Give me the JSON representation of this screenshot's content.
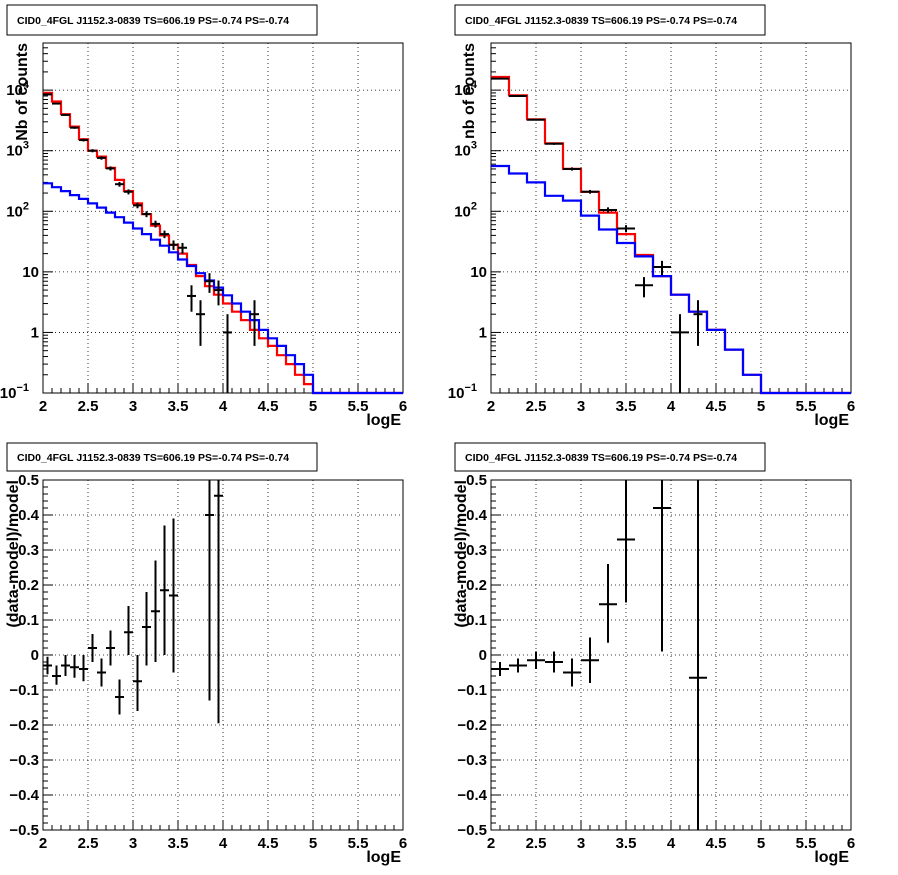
{
  "chart_data": [
    {
      "type": "line",
      "title": "CID0_4FGL J1152.3-0839 TS=606.19 PS=-0.74 PS=-0.74",
      "xlabel": "logE",
      "ylabel": "Nb of counts",
      "xlim": [
        2,
        6
      ],
      "ylim": [
        0.1,
        60000
      ],
      "ylog": true,
      "grid": true,
      "x_ticks": [
        "2",
        "2.5",
        "3",
        "3.5",
        "4",
        "4.5",
        "5",
        "5.5",
        "6"
      ],
      "y_ticks": [
        {
          "v": 0.1,
          "label": "10",
          "exp": "−1"
        },
        {
          "v": 1,
          "label": "1",
          "exp": ""
        },
        {
          "v": 10,
          "label": "10",
          "exp": ""
        },
        {
          "v": 100,
          "label": "10",
          "exp": "2"
        },
        {
          "v": 1000,
          "label": "10",
          "exp": "3"
        },
        {
          "v": 10000,
          "label": "10",
          "exp": "4"
        }
      ],
      "bin_edges": [
        2.0,
        2.1,
        2.2,
        2.3,
        2.4,
        2.5,
        2.6,
        2.7,
        2.8,
        2.9,
        3.0,
        3.1,
        3.2,
        3.3,
        3.4,
        3.5,
        3.6,
        3.7,
        3.8,
        3.9,
        4.0,
        4.1,
        4.2,
        4.3,
        4.4,
        4.5,
        4.6,
        4.7,
        4.8,
        4.9,
        5.0,
        5.1,
        5.2,
        5.3,
        5.4,
        5.5,
        5.6,
        5.7,
        5.8,
        5.9,
        6.0
      ],
      "series": [
        {
          "color": "#ff0000",
          "values": [
            9000,
            6500,
            4000,
            2500,
            1550,
            1000,
            800,
            520,
            330,
            215,
            135,
            90,
            58,
            40,
            28,
            20,
            13,
            8.5,
            5.8,
            4.2,
            3.0,
            2.2,
            1.6,
            1.1,
            0.8,
            0.6,
            0.42,
            0.3,
            0.2,
            0.14,
            0.1,
            0.1,
            0.1,
            0.1,
            0.1,
            0.1,
            0.1,
            0.1,
            0.1,
            0.1
          ]
        },
        {
          "color": "#0000ff",
          "values": [
            290,
            250,
            215,
            185,
            160,
            135,
            115,
            95,
            80,
            65,
            52,
            42,
            34,
            27,
            21,
            16,
            12.5,
            9.5,
            7.2,
            5.5,
            4.1,
            3.0,
            2.2,
            1.6,
            1.1,
            0.8,
            0.6,
            0.42,
            0.3,
            0.2,
            0.1,
            0.1,
            0.1,
            0.1,
            0.1,
            0.1,
            0.1,
            0.1,
            0.1,
            0.1
          ]
        }
      ],
      "points": [
        {
          "x": 2.05,
          "y": 8500,
          "xerr": 0.05,
          "lo": 8300,
          "hi": 8700
        },
        {
          "x": 2.15,
          "y": 6000,
          "xerr": 0.05,
          "lo": 5850,
          "hi": 6150
        },
        {
          "x": 2.25,
          "y": 3900,
          "xerr": 0.05,
          "lo": 3780,
          "hi": 4020
        },
        {
          "x": 2.35,
          "y": 2400,
          "xerr": 0.05,
          "lo": 2300,
          "hi": 2500
        },
        {
          "x": 2.45,
          "y": 1500,
          "xerr": 0.05,
          "lo": 1420,
          "hi": 1580
        },
        {
          "x": 2.55,
          "y": 1000,
          "xerr": 0.05,
          "lo": 940,
          "hi": 1060
        },
        {
          "x": 2.65,
          "y": 760,
          "xerr": 0.05,
          "lo": 710,
          "hi": 810
        },
        {
          "x": 2.75,
          "y": 510,
          "xerr": 0.05,
          "lo": 470,
          "hi": 550
        },
        {
          "x": 2.85,
          "y": 280,
          "xerr": 0.05,
          "lo": 255,
          "hi": 305
        },
        {
          "x": 2.95,
          "y": 210,
          "xerr": 0.05,
          "lo": 190,
          "hi": 230
        },
        {
          "x": 3.05,
          "y": 125,
          "xerr": 0.05,
          "lo": 112,
          "hi": 138
        },
        {
          "x": 3.15,
          "y": 90,
          "xerr": 0.05,
          "lo": 80,
          "hi": 100
        },
        {
          "x": 3.25,
          "y": 62,
          "xerr": 0.05,
          "lo": 54,
          "hi": 70
        },
        {
          "x": 3.35,
          "y": 42,
          "xerr": 0.05,
          "lo": 36,
          "hi": 48
        },
        {
          "x": 3.45,
          "y": 28,
          "xerr": 0.05,
          "lo": 23,
          "hi": 33
        },
        {
          "x": 3.55,
          "y": 25,
          "xerr": 0.05,
          "lo": 20,
          "hi": 30
        },
        {
          "x": 3.65,
          "y": 4,
          "xerr": 0.05,
          "lo": 2.2,
          "hi": 6
        },
        {
          "x": 3.75,
          "y": 2,
          "xerr": 0.05,
          "lo": 0.6,
          "hi": 3.4
        },
        {
          "x": 3.85,
          "y": 7,
          "xerr": 0.05,
          "lo": 4.5,
          "hi": 9.5
        },
        {
          "x": 3.95,
          "y": 5,
          "xerr": 0.05,
          "lo": 2.8,
          "hi": 7.2
        },
        {
          "x": 4.05,
          "y": 1,
          "xerr": 0.05,
          "lo": 0.1,
          "hi": 2.0
        },
        {
          "x": 4.35,
          "y": 2,
          "xerr": 0.05,
          "lo": 0.6,
          "hi": 3.4
        }
      ]
    },
    {
      "type": "line",
      "title": "CID0_4FGL J1152.3-0839 TS=606.19 PS=-0.74 PS=-0.74",
      "xlabel": "logE",
      "ylabel": "nb of counts",
      "xlim": [
        2,
        6
      ],
      "ylim": [
        0.1,
        60000
      ],
      "ylog": true,
      "grid": true,
      "x_ticks": [
        "2",
        "2.5",
        "3",
        "3.5",
        "4",
        "4.5",
        "5",
        "5.5",
        "6"
      ],
      "y_ticks": [
        {
          "v": 0.1,
          "label": "10",
          "exp": "−1"
        },
        {
          "v": 1,
          "label": "1",
          "exp": ""
        },
        {
          "v": 10,
          "label": "10",
          "exp": ""
        },
        {
          "v": 100,
          "label": "10",
          "exp": "2"
        },
        {
          "v": 1000,
          "label": "10",
          "exp": "3"
        },
        {
          "v": 10000,
          "label": "10",
          "exp": "4"
        }
      ],
      "bin_edges": [
        2.0,
        2.2,
        2.4,
        2.6,
        2.8,
        3.0,
        3.2,
        3.4,
        3.6,
        3.8,
        4.0,
        4.2,
        4.4,
        4.6,
        4.8,
        5.0,
        5.2,
        5.4,
        5.6,
        5.8,
        6.0
      ],
      "series": [
        {
          "color": "#ff0000",
          "values": [
            16500,
            8200,
            3300,
            1320,
            500,
            210,
            95,
            42,
            19,
            8.5,
            4.2,
            2.2,
            1.1,
            0.52,
            0.2,
            0.1,
            0.1,
            0.1,
            0.1,
            0.1
          ]
        },
        {
          "color": "#0000ff",
          "values": [
            560,
            420,
            300,
            180,
            150,
            85,
            50,
            30,
            18,
            8.5,
            4.2,
            2.2,
            1.1,
            0.52,
            0.2,
            0.1,
            0.1,
            0.1,
            0.1,
            0.1
          ]
        }
      ],
      "points": [
        {
          "x": 2.1,
          "y": 15500,
          "xerr": 0.1,
          "lo": 15200,
          "hi": 15800
        },
        {
          "x": 2.3,
          "y": 8000,
          "xerr": 0.1,
          "lo": 7850,
          "hi": 8150
        },
        {
          "x": 2.5,
          "y": 3250,
          "xerr": 0.1,
          "lo": 3150,
          "hi": 3350
        },
        {
          "x": 2.7,
          "y": 1300,
          "xerr": 0.1,
          "lo": 1250,
          "hi": 1350
        },
        {
          "x": 2.9,
          "y": 500,
          "xerr": 0.1,
          "lo": 470,
          "hi": 530
        },
        {
          "x": 3.1,
          "y": 210,
          "xerr": 0.1,
          "lo": 195,
          "hi": 225
        },
        {
          "x": 3.3,
          "y": 105,
          "xerr": 0.1,
          "lo": 94,
          "hi": 116
        },
        {
          "x": 3.5,
          "y": 52,
          "xerr": 0.1,
          "lo": 45,
          "hi": 59
        },
        {
          "x": 3.7,
          "y": 6,
          "xerr": 0.1,
          "lo": 3.8,
          "hi": 8.2
        },
        {
          "x": 3.9,
          "y": 12,
          "xerr": 0.1,
          "lo": 8.8,
          "hi": 15.2
        },
        {
          "x": 4.1,
          "y": 1,
          "xerr": 0.1,
          "lo": 0.1,
          "hi": 2.0
        },
        {
          "x": 4.3,
          "y": 2,
          "xerr": 0.05,
          "lo": 0.6,
          "hi": 3.4
        }
      ]
    },
    {
      "type": "scatter",
      "title": "CID0_4FGL J1152.3-0839 TS=606.19 PS=-0.74 PS=-0.74",
      "xlabel": "logE",
      "ylabel": "(data-model)/model",
      "xlim": [
        2,
        6
      ],
      "ylim": [
        -0.5,
        0.5
      ],
      "ylog": false,
      "grid": true,
      "x_ticks": [
        "2",
        "2.5",
        "3",
        "3.5",
        "4",
        "4.5",
        "5",
        "5.5",
        "6"
      ],
      "y_ticks": [
        {
          "v": -0.5,
          "label": "−0.5"
        },
        {
          "v": -0.4,
          "label": "−0.4"
        },
        {
          "v": -0.3,
          "label": "−0.3"
        },
        {
          "v": -0.2,
          "label": "−0.2"
        },
        {
          "v": -0.1,
          "label": "−0.1"
        },
        {
          "v": 0,
          "label": "0"
        },
        {
          "v": 0.1,
          "label": "0.1"
        },
        {
          "v": 0.2,
          "label": "0.2"
        },
        {
          "v": 0.3,
          "label": "0.3"
        },
        {
          "v": 0.4,
          "label": "0.4"
        },
        {
          "v": 0.5,
          "label": "0.5"
        }
      ],
      "points": [
        {
          "x": 2.05,
          "y": -0.03,
          "xerr": 0.05,
          "lo": -0.055,
          "hi": -0.005
        },
        {
          "x": 2.15,
          "y": -0.06,
          "xerr": 0.05,
          "lo": -0.085,
          "hi": -0.03
        },
        {
          "x": 2.25,
          "y": -0.03,
          "xerr": 0.05,
          "lo": -0.06,
          "hi": 0.0
        },
        {
          "x": 2.35,
          "y": -0.035,
          "xerr": 0.05,
          "lo": -0.065,
          "hi": 0.0
        },
        {
          "x": 2.45,
          "y": -0.04,
          "xerr": 0.05,
          "lo": -0.075,
          "hi": 0.0
        },
        {
          "x": 2.55,
          "y": 0.02,
          "xerr": 0.05,
          "lo": -0.02,
          "hi": 0.06
        },
        {
          "x": 2.65,
          "y": -0.05,
          "xerr": 0.05,
          "lo": -0.09,
          "hi": -0.01
        },
        {
          "x": 2.75,
          "y": 0.02,
          "xerr": 0.05,
          "lo": -0.03,
          "hi": 0.07
        },
        {
          "x": 2.85,
          "y": -0.12,
          "xerr": 0.05,
          "lo": -0.17,
          "hi": -0.07
        },
        {
          "x": 2.95,
          "y": 0.065,
          "xerr": 0.05,
          "lo": 0.0,
          "hi": 0.14
        },
        {
          "x": 3.05,
          "y": -0.075,
          "xerr": 0.05,
          "lo": -0.16,
          "hi": 0.0
        },
        {
          "x": 3.15,
          "y": 0.08,
          "xerr": 0.05,
          "lo": -0.03,
          "hi": 0.18
        },
        {
          "x": 3.25,
          "y": 0.125,
          "xerr": 0.05,
          "lo": -0.02,
          "hi": 0.27
        },
        {
          "x": 3.35,
          "y": 0.185,
          "xerr": 0.05,
          "lo": 0.0,
          "hi": 0.37
        },
        {
          "x": 3.45,
          "y": 0.17,
          "xerr": 0.05,
          "lo": -0.05,
          "hi": 0.39
        },
        {
          "x": 3.85,
          "y": 0.4,
          "xerr": 0.05,
          "lo": -0.13,
          "hi": 0.5
        },
        {
          "x": 3.95,
          "y": 0.455,
          "xerr": 0.05,
          "lo": -0.195,
          "hi": 0.5
        }
      ]
    },
    {
      "type": "scatter",
      "title": "CID0_4FGL J1152.3-0839 TS=606.19 PS=-0.74 PS=-0.74",
      "xlabel": "logE",
      "ylabel": "(data-model)/model",
      "xlim": [
        2,
        6
      ],
      "ylim": [
        -0.5,
        0.5
      ],
      "ylog": false,
      "grid": true,
      "x_ticks": [
        "2",
        "2.5",
        "3",
        "3.5",
        "4",
        "4.5",
        "5",
        "5.5",
        "6"
      ],
      "y_ticks": [
        {
          "v": -0.5,
          "label": "−0.5"
        },
        {
          "v": -0.4,
          "label": "−0.4"
        },
        {
          "v": -0.3,
          "label": "−0.3"
        },
        {
          "v": -0.2,
          "label": "−0.2"
        },
        {
          "v": -0.1,
          "label": "−0.1"
        },
        {
          "v": 0,
          "label": "0"
        },
        {
          "v": 0.1,
          "label": "0.1"
        },
        {
          "v": 0.2,
          "label": "0.2"
        },
        {
          "v": 0.3,
          "label": "0.3"
        },
        {
          "v": 0.4,
          "label": "0.4"
        },
        {
          "v": 0.5,
          "label": "0.5"
        }
      ],
      "points": [
        {
          "x": 2.1,
          "y": -0.04,
          "xerr": 0.1,
          "lo": -0.06,
          "hi": -0.02
        },
        {
          "x": 2.3,
          "y": -0.03,
          "xerr": 0.1,
          "lo": -0.05,
          "hi": -0.01
        },
        {
          "x": 2.5,
          "y": -0.015,
          "xerr": 0.1,
          "lo": -0.04,
          "hi": 0.01
        },
        {
          "x": 2.7,
          "y": -0.02,
          "xerr": 0.1,
          "lo": -0.05,
          "hi": 0.01
        },
        {
          "x": 2.9,
          "y": -0.05,
          "xerr": 0.1,
          "lo": -0.09,
          "hi": -0.01
        },
        {
          "x": 3.1,
          "y": -0.015,
          "xerr": 0.1,
          "lo": -0.08,
          "hi": 0.05
        },
        {
          "x": 3.3,
          "y": 0.145,
          "xerr": 0.1,
          "lo": 0.035,
          "hi": 0.26
        },
        {
          "x": 3.5,
          "y": 0.33,
          "xerr": 0.1,
          "lo": 0.15,
          "hi": 0.5
        },
        {
          "x": 3.9,
          "y": 0.42,
          "xerr": 0.1,
          "lo": 0.01,
          "hi": 0.5
        },
        {
          "x": 4.3,
          "y": -0.065,
          "xerr": 0.1,
          "lo": -0.5,
          "hi": 0.5
        }
      ]
    }
  ]
}
